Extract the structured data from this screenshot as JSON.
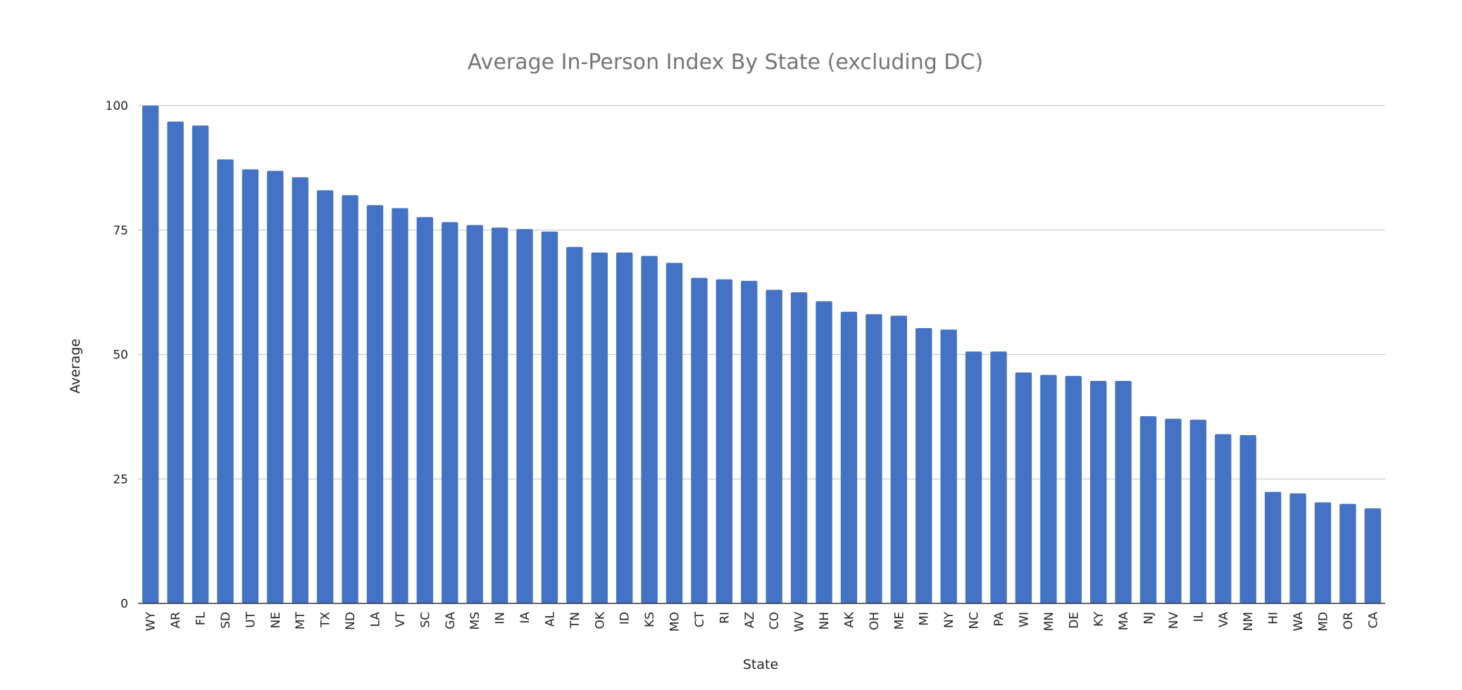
{
  "chart_data": {
    "type": "bar",
    "title": "Average In-Person Index By State (excluding DC)",
    "xlabel": "State",
    "ylabel": "Average",
    "ylim": [
      0,
      100
    ],
    "yticks": [
      0,
      25,
      50,
      75,
      100
    ],
    "grid": true,
    "bar_color": "#4472c4",
    "categories": [
      "WY",
      "AR",
      "FL",
      "SD",
      "UT",
      "NE",
      "MT",
      "TX",
      "ND",
      "LA",
      "VT",
      "SC",
      "GA",
      "MS",
      "IN",
      "IA",
      "AL",
      "TN",
      "OK",
      "ID",
      "KS",
      "MO",
      "CT",
      "RI",
      "AZ",
      "CO",
      "WV",
      "NH",
      "AK",
      "OH",
      "ME",
      "MI",
      "NY",
      "NC",
      "PA",
      "WI",
      "MN",
      "DE",
      "KY",
      "MA",
      "NJ",
      "NV",
      "IL",
      "VA",
      "NM",
      "HI",
      "WA",
      "MD",
      "OR",
      "CA"
    ],
    "values": [
      100,
      96.8,
      96,
      89.2,
      87.2,
      86.9,
      85.6,
      83,
      82,
      80,
      79.4,
      77.6,
      76.6,
      76,
      75.5,
      75.2,
      74.7,
      71.6,
      70.5,
      70.5,
      69.8,
      68.4,
      65.4,
      65.1,
      64.8,
      63,
      62.5,
      60.7,
      58.6,
      58.1,
      57.8,
      55.3,
      55,
      50.6,
      50.6,
      46.4,
      45.9,
      45.7,
      44.7,
      44.7,
      37.6,
      37.1,
      36.9,
      34,
      33.8,
      22.4,
      22.1,
      20.3,
      20,
      19.1
    ]
  }
}
